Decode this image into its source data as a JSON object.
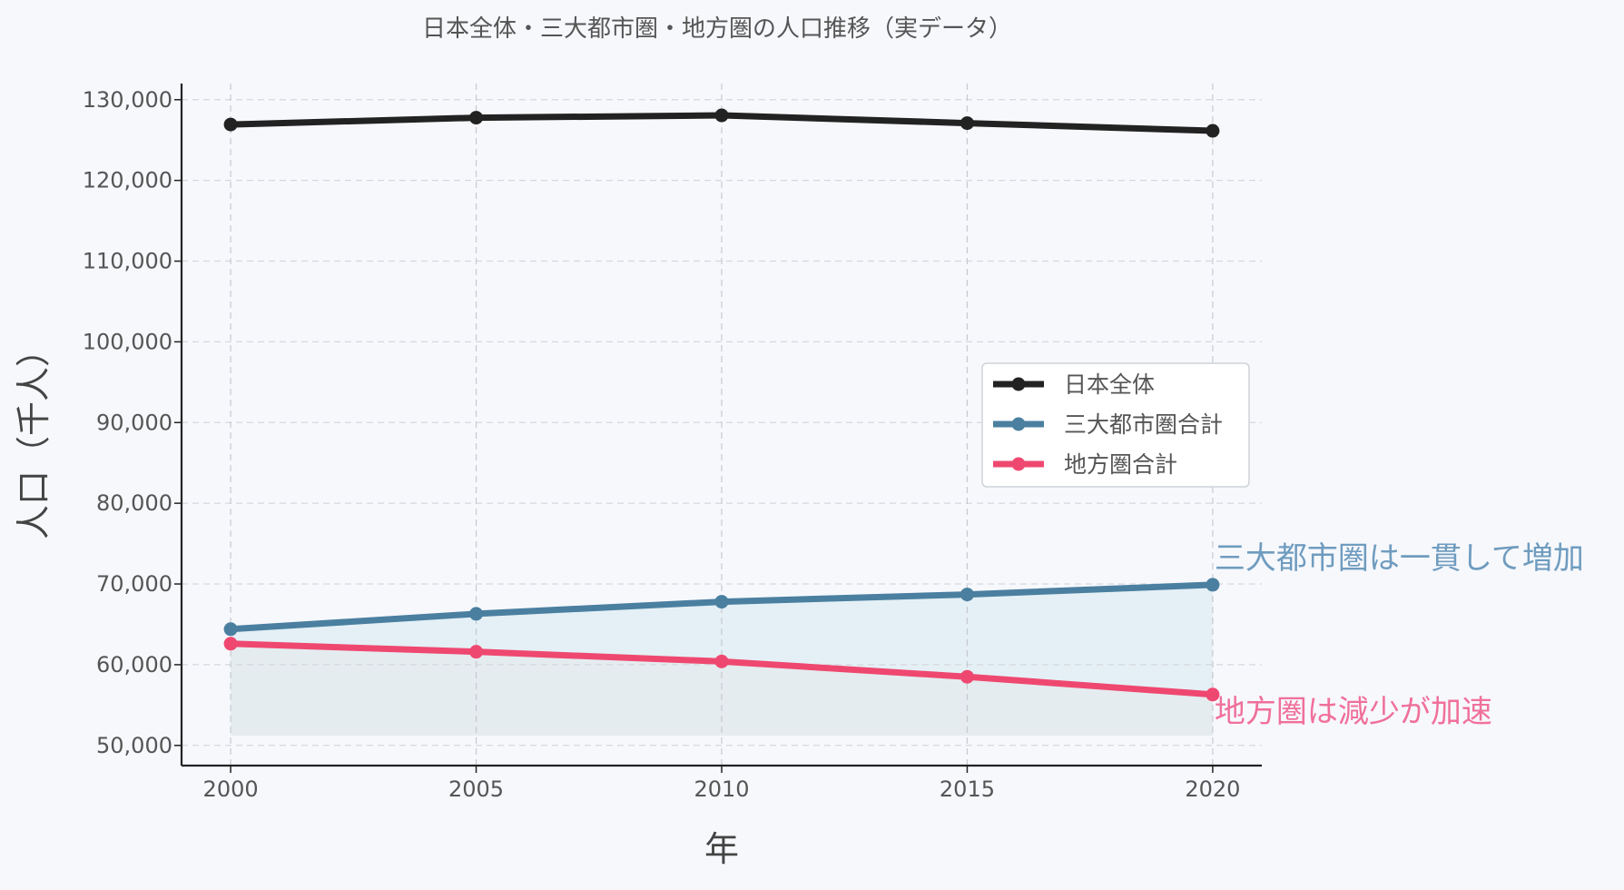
{
  "chart_data": {
    "type": "line",
    "title": "日本全体・三大都市圏・地方圏の人口推移（実データ）",
    "xlabel": "年",
    "ylabel": "人口（千人）",
    "x": [
      2000,
      2005,
      2010,
      2015,
      2020
    ],
    "x_ticks": [
      "2000",
      "2005",
      "2010",
      "2015",
      "2020"
    ],
    "xlim": [
      1999,
      2021
    ],
    "ylim": [
      47500,
      132000
    ],
    "y_ticks": [
      50000,
      60000,
      70000,
      80000,
      90000,
      100000,
      110000,
      120000,
      130000
    ],
    "y_tick_labels": [
      "50,000",
      "60,000",
      "70,000",
      "80,000",
      "90,000",
      "100,000",
      "110,000",
      "120,000",
      "130,000"
    ],
    "grid": true,
    "legend_position": "center-right",
    "series": [
      {
        "name": "日本全体",
        "values": [
          126926,
          127768,
          128057,
          127095,
          126146
        ],
        "color": "#222222"
      },
      {
        "name": "三大都市圏合計",
        "values": [
          64400,
          66300,
          67800,
          68700,
          69900
        ],
        "color": "#4a7fa0"
      },
      {
        "name": "地方圏合計",
        "values": [
          62600,
          61600,
          60400,
          58500,
          56300
        ],
        "color": "#ef4870"
      }
    ],
    "fill_baseline": 51200,
    "fill_colors": {
      "upper": "#e4f0f5",
      "lower": "#e5ecef"
    },
    "annotations": [
      {
        "text": "三大都市圏は一貫して増加",
        "series": 1,
        "color": "#6f9cbf"
      },
      {
        "text": "地方圏は減少が加速",
        "series": 2,
        "color": "#f0709a"
      }
    ]
  }
}
